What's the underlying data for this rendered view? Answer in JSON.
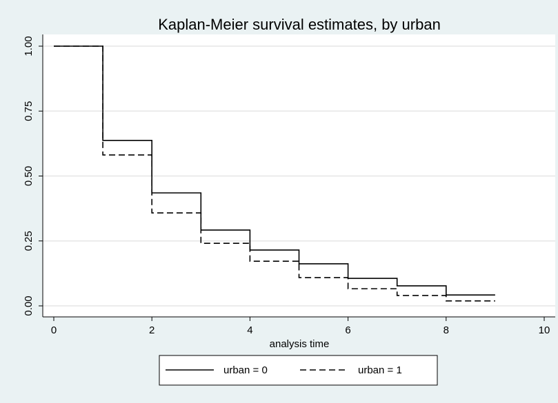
{
  "chart_data": {
    "type": "step",
    "title": "Kaplan-Meier survival estimates, by urban",
    "x_label": "analysis time",
    "x": [
      0,
      1,
      2,
      3,
      4,
      5,
      6,
      7,
      8,
      9
    ],
    "series": [
      {
        "name": "urban = 0",
        "color": "#000000",
        "dash": "solid",
        "values": [
          1,
          0.637,
          0.435,
          0.292,
          0.215,
          0.162,
          0.106,
          0.077,
          0.042,
          0.042
        ]
      },
      {
        "name": "urban = 1",
        "color": "#000000",
        "dash": "dashed",
        "values": [
          1,
          0.581,
          0.358,
          0.241,
          0.172,
          0.109,
          0.066,
          0.04,
          0.019,
          0.019
        ]
      }
    ],
    "xlim": [
      0,
      10
    ],
    "xticks": [
      0,
      2,
      4,
      6,
      8,
      10
    ],
    "ylim": [
      0,
      1
    ],
    "yticks": [
      {
        "value": 0,
        "label": "0.00"
      },
      0.25,
      {
        "value": 0.5,
        "label": "0.50"
      },
      0.75,
      {
        "value": 1,
        "label": "1.00"
      }
    ],
    "grid": true,
    "legend": "bottom"
  }
}
